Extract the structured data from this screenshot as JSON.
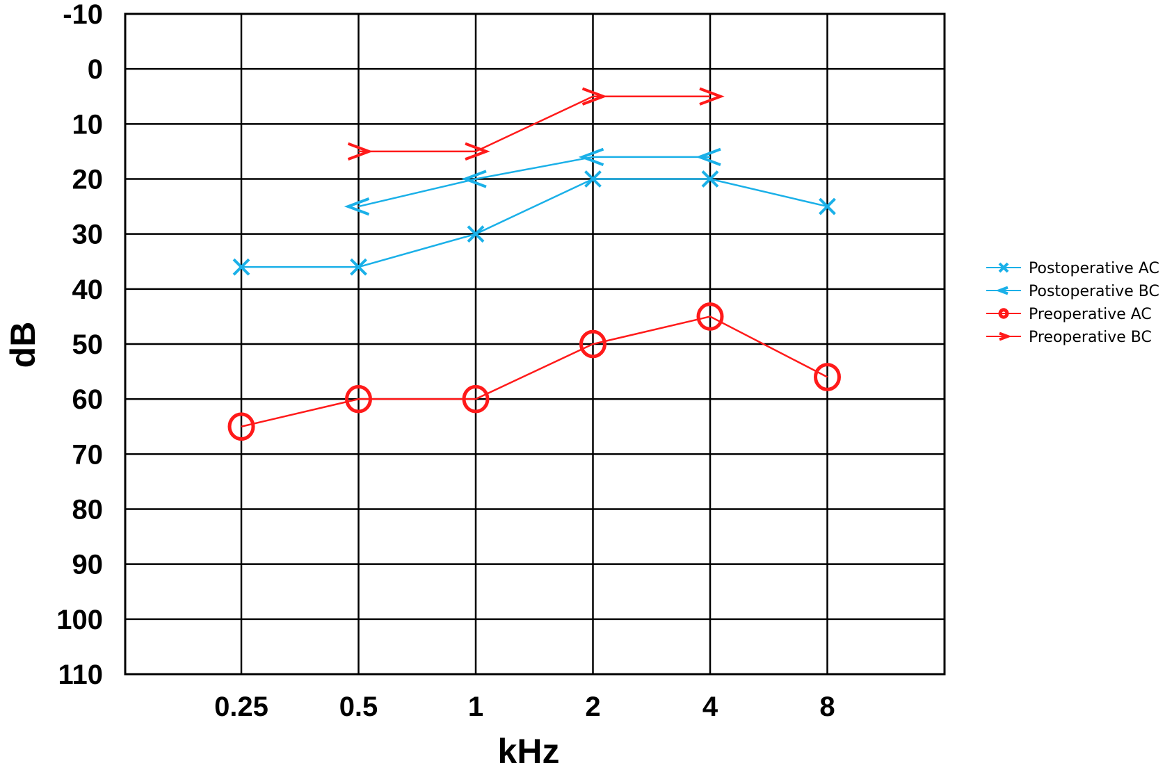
{
  "chart_data": {
    "type": "line",
    "xlabel": "kHz",
    "ylabel": "dB",
    "categories": [
      "0.25",
      "0.5",
      "1",
      "2",
      "4",
      "8"
    ],
    "y_ticks": [
      "-10",
      "0",
      "10",
      "20",
      "30",
      "40",
      "50",
      "60",
      "70",
      "80",
      "90",
      "100",
      "110"
    ],
    "ylim": [
      -10,
      110
    ],
    "y_inverted": true,
    "grid": true,
    "legend_position": "right",
    "series": [
      {
        "name": "Postoperative AC",
        "color": "#1ab0e8",
        "marker": "x",
        "values": [
          36,
          36,
          30,
          20,
          20,
          25
        ]
      },
      {
        "name": "Postoperative BC",
        "color": "#1ab0e8",
        "marker": "<",
        "values": [
          null,
          25,
          20,
          16,
          16,
          null
        ]
      },
      {
        "name": "Preoperative AC",
        "color": "#ff1a1a",
        "marker": "o",
        "values": [
          65,
          60,
          60,
          50,
          45,
          56
        ]
      },
      {
        "name": "Preoperative BC",
        "color": "#ff1a1a",
        "marker": ">",
        "values": [
          null,
          15,
          15,
          5,
          5,
          null
        ]
      }
    ]
  }
}
